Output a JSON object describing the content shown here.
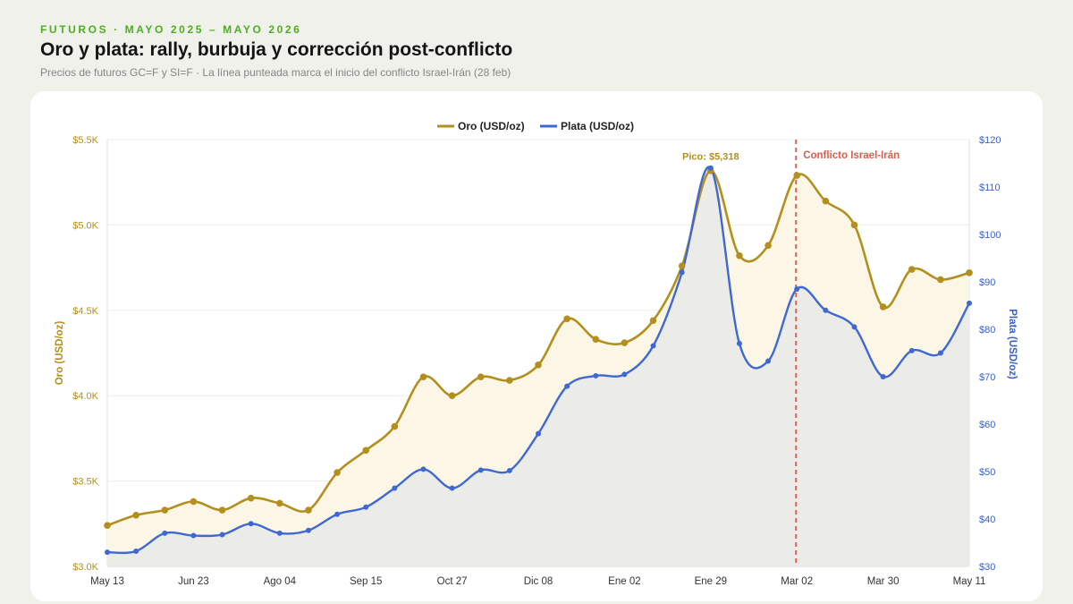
{
  "header": {
    "eyebrow": "FUTUROS · MAYO 2025 – MAYO 2026",
    "title": "Oro y plata: rally, burbuja y corrección post-conflicto",
    "subtitle": "Precios de futuros GC=F y SI=F · La línea punteada marca el inicio del conflicto Israel-Irán (28 feb)"
  },
  "chart_data": {
    "type": "line",
    "x_tick_labels": [
      "May 13",
      "Jun 23",
      "Ago 04",
      "Sep 15",
      "Oct 27",
      "Dic 08",
      "Ene 02",
      "Ene 29",
      "Mar 02",
      "Mar 30",
      "May 11"
    ],
    "x_tick_positions": [
      0,
      3,
      6,
      9,
      12,
      15,
      18,
      21,
      24,
      27,
      30
    ],
    "series": [
      {
        "name": "Oro (USD/oz)",
        "axis": "left",
        "color": "#b38f1e",
        "fill": "#fbf6e6",
        "values": [
          3240,
          3300,
          3330,
          3380,
          3330,
          3400,
          3370,
          3330,
          3550,
          3680,
          3820,
          4110,
          4000,
          4110,
          4090,
          4180,
          4450,
          4330,
          4310,
          4440,
          4760,
          5318,
          4820,
          4880,
          5290,
          5140,
          5000,
          4520,
          4740,
          4680,
          4720
        ]
      },
      {
        "name": "Plata (USD/oz)",
        "axis": "right",
        "color": "#3f68d1",
        "fill": "#ebebe8",
        "values": [
          33,
          33.2,
          37,
          36.5,
          36.7,
          39,
          37,
          37.6,
          41,
          42.5,
          46.5,
          50.5,
          46.5,
          50.3,
          50.2,
          58,
          68,
          70.2,
          70.5,
          76.5,
          92,
          114,
          77,
          73.3,
          88.5,
          84,
          80.5,
          70,
          75.5,
          75,
          85.5
        ]
      }
    ],
    "y_left": {
      "label": "Oro (USD/oz)",
      "range": [
        3000,
        5500
      ],
      "ticks": [
        3000,
        3500,
        4000,
        4500,
        5000,
        5500
      ],
      "tick_labels": [
        "$3.0K",
        "$3.5K",
        "$4.0K",
        "$4.5K",
        "$5.0K",
        "$5.5K"
      ]
    },
    "y_right": {
      "label": "Plata (USD/oz)",
      "range": [
        30,
        120
      ],
      "ticks": [
        30,
        40,
        50,
        60,
        70,
        80,
        90,
        100,
        110,
        120
      ],
      "tick_labels": [
        "$30",
        "$40",
        "$50",
        "$60",
        "$70",
        "$80",
        "$90",
        "$100",
        "$110",
        "$120"
      ]
    },
    "annotations": [
      {
        "text": "Pico: $5,318",
        "x_index": 21,
        "series": "Oro (USD/oz)"
      },
      {
        "text": "Conflicto Israel-Irán",
        "x_index": 24,
        "type": "vertical-dashed-line",
        "color": "#e05a4e"
      }
    ],
    "legend": "top-center",
    "grid": "horizontal"
  }
}
